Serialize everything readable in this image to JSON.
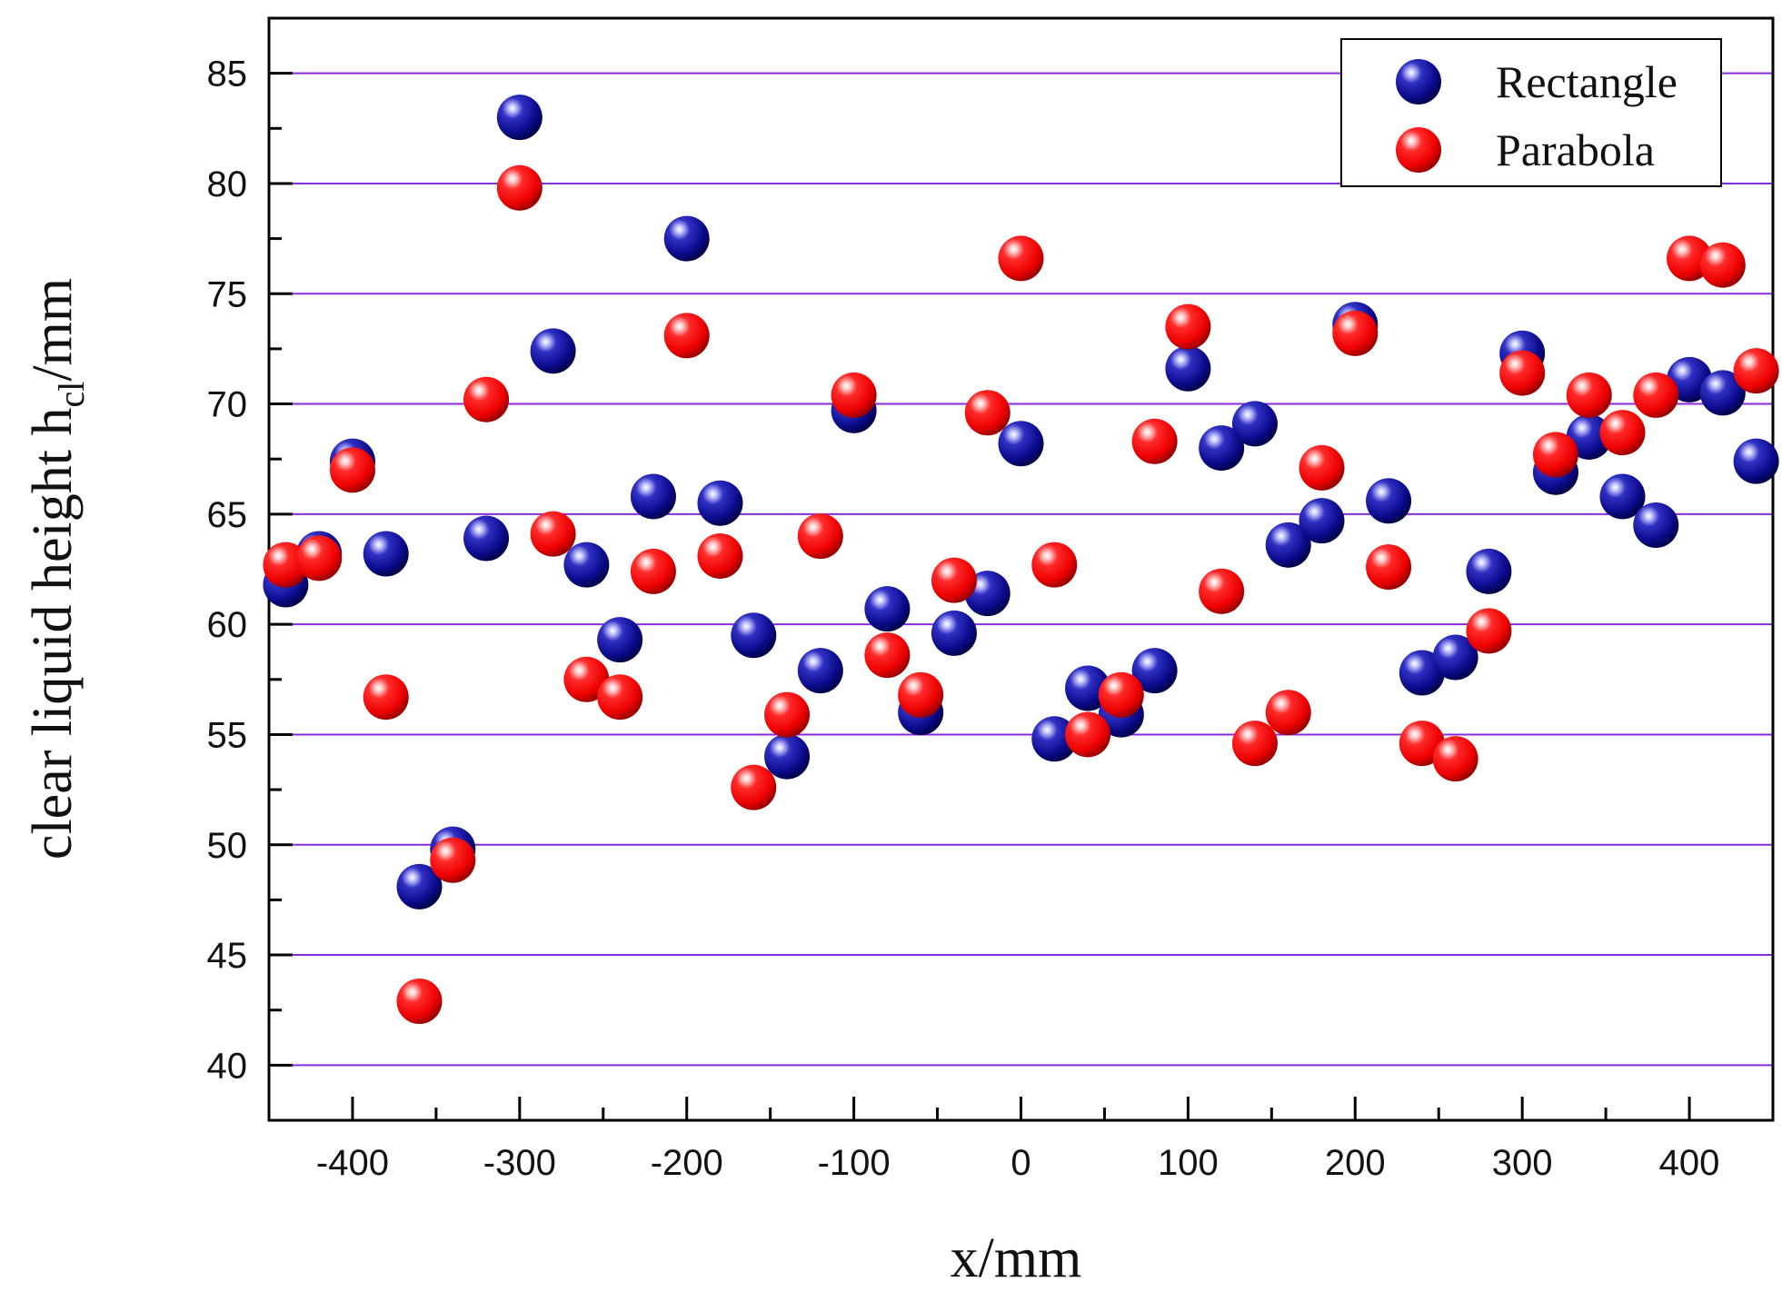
{
  "chart_data": {
    "type": "scatter",
    "title": "",
    "xlabel": "x/mm",
    "ylabel_main": "clear liquid height h",
    "ylabel_sub": "cl",
    "ylabel_unit": "/mm",
    "xlim": [
      -450,
      450
    ],
    "ylim": [
      37.5,
      87.5
    ],
    "xticks": [
      -400,
      -300,
      -200,
      -100,
      0,
      100,
      200,
      300,
      400
    ],
    "yticks": [
      40,
      45,
      50,
      55,
      60,
      65,
      70,
      75,
      80,
      85
    ],
    "xtick_labels": [
      "-400",
      "-300",
      "-200",
      "-100",
      "0",
      "100",
      "200",
      "300",
      "400"
    ],
    "ytick_labels": [
      "40",
      "45",
      "50",
      "55",
      "60",
      "65",
      "70",
      "75",
      "80",
      "85"
    ],
    "grid": "horizontal",
    "legend_position": "top-right",
    "series": [
      {
        "name": "Rectangle",
        "color": "#0a0a8c",
        "points": [
          [
            -440,
            61.8
          ],
          [
            -420,
            63.2
          ],
          [
            -400,
            67.4
          ],
          [
            -380,
            63.2
          ],
          [
            -360,
            48.1
          ],
          [
            -340,
            49.8
          ],
          [
            -320,
            63.9
          ],
          [
            -300,
            83.0
          ],
          [
            -280,
            72.4
          ],
          [
            -260,
            62.7
          ],
          [
            -240,
            59.3
          ],
          [
            -220,
            65.8
          ],
          [
            -200,
            77.5
          ],
          [
            -180,
            65.5
          ],
          [
            -160,
            59.5
          ],
          [
            -140,
            54.0
          ],
          [
            -120,
            57.9
          ],
          [
            -100,
            69.7
          ],
          [
            -80,
            60.7
          ],
          [
            -60,
            56.0
          ],
          [
            -40,
            59.6
          ],
          [
            -20,
            61.4
          ],
          [
            0,
            68.2
          ],
          [
            20,
            54.8
          ],
          [
            40,
            57.1
          ],
          [
            60,
            55.9
          ],
          [
            80,
            57.9
          ],
          [
            100,
            71.6
          ],
          [
            120,
            68.0
          ],
          [
            140,
            69.1
          ],
          [
            160,
            63.6
          ],
          [
            180,
            64.7
          ],
          [
            200,
            73.6
          ],
          [
            220,
            65.6
          ],
          [
            240,
            57.8
          ],
          [
            260,
            58.5
          ],
          [
            280,
            62.4
          ],
          [
            300,
            72.3
          ],
          [
            320,
            66.9
          ],
          [
            340,
            68.5
          ],
          [
            360,
            65.8
          ],
          [
            380,
            64.5
          ],
          [
            400,
            71.1
          ],
          [
            420,
            70.5
          ],
          [
            440,
            67.4
          ]
        ]
      },
      {
        "name": "Parabola",
        "color": "#ff0000",
        "points": [
          [
            -440,
            62.7
          ],
          [
            -420,
            63.0
          ],
          [
            -400,
            67.0
          ],
          [
            -380,
            56.7
          ],
          [
            -360,
            42.9
          ],
          [
            -340,
            49.3
          ],
          [
            -320,
            70.2
          ],
          [
            -300,
            79.8
          ],
          [
            -280,
            64.1
          ],
          [
            -260,
            57.5
          ],
          [
            -240,
            56.7
          ],
          [
            -220,
            62.4
          ],
          [
            -200,
            73.1
          ],
          [
            -180,
            63.1
          ],
          [
            -160,
            52.6
          ],
          [
            -140,
            55.9
          ],
          [
            -120,
            64.0
          ],
          [
            -100,
            70.4
          ],
          [
            -80,
            58.6
          ],
          [
            -60,
            56.8
          ],
          [
            -40,
            62.0
          ],
          [
            -20,
            69.6
          ],
          [
            0,
            76.6
          ],
          [
            20,
            62.7
          ],
          [
            40,
            55.0
          ],
          [
            60,
            56.8
          ],
          [
            80,
            68.3
          ],
          [
            100,
            73.5
          ],
          [
            120,
            61.5
          ],
          [
            140,
            54.6
          ],
          [
            160,
            56.0
          ],
          [
            180,
            67.1
          ],
          [
            200,
            73.2
          ],
          [
            220,
            62.6
          ],
          [
            240,
            54.6
          ],
          [
            260,
            53.9
          ],
          [
            280,
            59.7
          ],
          [
            300,
            71.4
          ],
          [
            320,
            67.7
          ],
          [
            340,
            70.4
          ],
          [
            360,
            68.7
          ],
          [
            380,
            70.4
          ],
          [
            400,
            76.6
          ],
          [
            420,
            76.3
          ],
          [
            440,
            71.5
          ]
        ]
      }
    ]
  }
}
